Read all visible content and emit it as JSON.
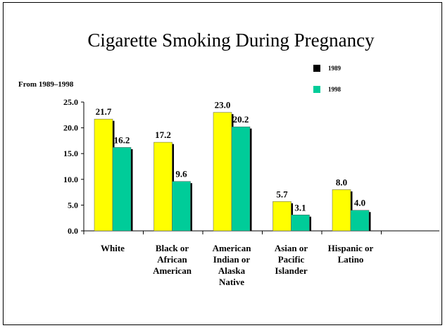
{
  "chart_data": {
    "type": "bar",
    "title": "Cigarette Smoking During Pregnancy",
    "subtitle": "From 1989–1998",
    "categories": [
      [
        "White"
      ],
      [
        "Black or",
        "African",
        "American"
      ],
      [
        "American",
        "Indian or",
        "Alaska",
        "Native"
      ],
      [
        "Asian or",
        "Pacific",
        "Islander"
      ],
      [
        "Hispanic or",
        "Latino"
      ]
    ],
    "series": [
      {
        "name": "1989",
        "values": [
          21.7,
          17.2,
          23.0,
          5.7,
          8.0
        ],
        "labels": [
          "21.7",
          "17.2",
          "23.0",
          "5.7",
          "8.0"
        ],
        "color": "#ffff00",
        "legend_swatch": "#000000"
      },
      {
        "name": "1998",
        "values": [
          16.2,
          9.6,
          20.2,
          3.1,
          4.0
        ],
        "labels": [
          "16.2",
          "9.6",
          "20.2",
          "3.1",
          "4.0"
        ],
        "color": "#00cc99",
        "legend_swatch": "#00cc99"
      }
    ],
    "yticks": [
      "25.0",
      "20.0",
      "15.0",
      "10.0",
      "5.0",
      "0.0"
    ],
    "ylim": [
      0,
      25
    ],
    "legend_position": "top-right",
    "grid": false
  }
}
